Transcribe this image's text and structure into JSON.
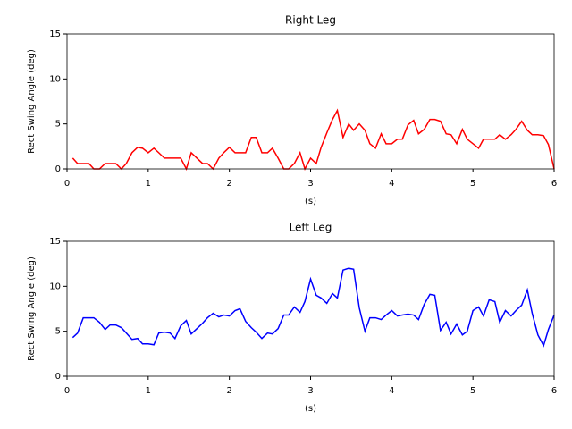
{
  "chart_data": [
    {
      "type": "line",
      "title": "Right Leg",
      "xlabel": "(s)",
      "ylabel": "Rect Swing Angle (deg)",
      "color": "#ff0000",
      "x": [
        0.07,
        0.13,
        0.2,
        0.27,
        0.33,
        0.4,
        0.47,
        0.53,
        0.6,
        0.67,
        0.73,
        0.8,
        0.87,
        0.93,
        1.0,
        1.07,
        1.13,
        1.2,
        1.27,
        1.33,
        1.4,
        1.47,
        1.53,
        1.6,
        1.67,
        1.73,
        1.8,
        1.87,
        1.93,
        2.0,
        2.07,
        2.13,
        2.2,
        2.27,
        2.33,
        2.4,
        2.47,
        2.53,
        2.6,
        2.67,
        2.73,
        2.8,
        2.87,
        2.93,
        3.0,
        3.07,
        3.13,
        3.2,
        3.27,
        3.33,
        3.4,
        3.47,
        3.53,
        3.6,
        3.67,
        3.73,
        3.8,
        3.87,
        3.93,
        4.0,
        4.07,
        4.13,
        4.2,
        4.27,
        4.33,
        4.4,
        4.47,
        4.53,
        4.6,
        4.67,
        4.73,
        4.8,
        4.87,
        4.93,
        5.0,
        5.07,
        5.13,
        5.2,
        5.27,
        5.33,
        5.4,
        5.47,
        5.53,
        5.6,
        5.67,
        5.73,
        5.8,
        5.87,
        5.93,
        6.0
      ],
      "values": [
        1.2,
        0.6,
        0.6,
        0.6,
        0,
        0,
        0.6,
        0.6,
        0.6,
        0,
        0.6,
        1.8,
        2.4,
        2.3,
        1.8,
        2.3,
        1.8,
        1.2,
        1.2,
        1.2,
        1.2,
        0,
        1.8,
        1.2,
        0.6,
        0.6,
        0,
        1.2,
        1.8,
        2.4,
        1.8,
        1.8,
        1.8,
        3.5,
        3.5,
        1.8,
        1.8,
        2.3,
        1.2,
        0,
        0,
        0.6,
        1.8,
        0,
        1.2,
        0.6,
        2.4,
        4,
        5.5,
        6.5,
        3.5,
        5,
        4.3,
        5,
        4.3,
        2.8,
        2.3,
        3.9,
        2.8,
        2.8,
        3.3,
        3.3,
        4.9,
        5.4,
        3.9,
        4.4,
        5.5,
        5.5,
        5.3,
        3.9,
        3.8,
        2.8,
        4.4,
        3.3,
        2.8,
        2.3,
        3.3,
        3.3,
        3.3,
        3.8,
        3.3,
        3.8,
        4.4,
        5.3,
        4.3,
        3.8,
        3.8,
        3.7,
        2.7,
        0
      ],
      "xlim": [
        0,
        6
      ],
      "xticks": [
        0,
        1,
        2,
        3,
        4,
        5,
        6
      ],
      "ylim": [
        0,
        15
      ],
      "yticks": [
        0,
        5,
        10,
        15
      ]
    },
    {
      "type": "line",
      "title": "Left Leg",
      "xlabel": "(s)",
      "ylabel": "Rect Swing Angle (deg)",
      "color": "#0000ff",
      "x": [
        0.07,
        0.13,
        0.2,
        0.27,
        0.33,
        0.4,
        0.47,
        0.53,
        0.6,
        0.67,
        0.73,
        0.8,
        0.87,
        0.93,
        1.0,
        1.07,
        1.13,
        1.2,
        1.27,
        1.33,
        1.4,
        1.47,
        1.53,
        1.6,
        1.67,
        1.73,
        1.8,
        1.87,
        1.93,
        2.0,
        2.07,
        2.13,
        2.2,
        2.27,
        2.33,
        2.4,
        2.47,
        2.53,
        2.6,
        2.67,
        2.73,
        2.8,
        2.87,
        2.93,
        3.0,
        3.07,
        3.13,
        3.2,
        3.27,
        3.33,
        3.4,
        3.47,
        3.53,
        3.6,
        3.67,
        3.73,
        3.8,
        3.87,
        3.93,
        4.0,
        4.07,
        4.13,
        4.2,
        4.27,
        4.33,
        4.4,
        4.47,
        4.53,
        4.6,
        4.67,
        4.73,
        4.8,
        4.87,
        4.93,
        5.0,
        5.07,
        5.13,
        5.2,
        5.27,
        5.33,
        5.4,
        5.47,
        5.53,
        5.6,
        5.67,
        5.73,
        5.8,
        5.87,
        5.93,
        6.0
      ],
      "values": [
        4.3,
        4.8,
        6.5,
        6.5,
        6.5,
        6.0,
        5.2,
        5.7,
        5.7,
        5.4,
        4.8,
        4.1,
        4.2,
        3.6,
        3.6,
        3.5,
        4.8,
        4.9,
        4.8,
        4.2,
        5.6,
        6.2,
        4.7,
        5.3,
        5.9,
        6.5,
        7.0,
        6.6,
        6.8,
        6.7,
        7.3,
        7.5,
        6.1,
        5.4,
        4.9,
        4.2,
        4.8,
        4.7,
        5.3,
        6.8,
        6.8,
        7.7,
        7.1,
        8.3,
        10.8,
        9.0,
        8.7,
        8.1,
        9.2,
        8.7,
        11.8,
        12.0,
        11.9,
        7.6,
        5.0,
        6.5,
        6.5,
        6.3,
        6.8,
        7.3,
        6.7,
        6.8,
        6.9,
        6.8,
        6.3,
        8.0,
        9.1,
        9.0,
        5.1,
        6.0,
        4.7,
        5.8,
        4.6,
        5.0,
        7.3,
        7.7,
        6.7,
        8.5,
        8.3,
        6.0,
        7.3,
        6.7,
        7.3,
        7.9,
        9.6,
        7.0,
        4.6,
        3.4,
        5.2,
        6.8
      ],
      "xlim": [
        0,
        6
      ],
      "xticks": [
        0,
        1,
        2,
        3,
        4,
        5,
        6
      ],
      "ylim": [
        0,
        15
      ],
      "yticks": [
        0,
        5,
        10,
        15
      ]
    }
  ]
}
